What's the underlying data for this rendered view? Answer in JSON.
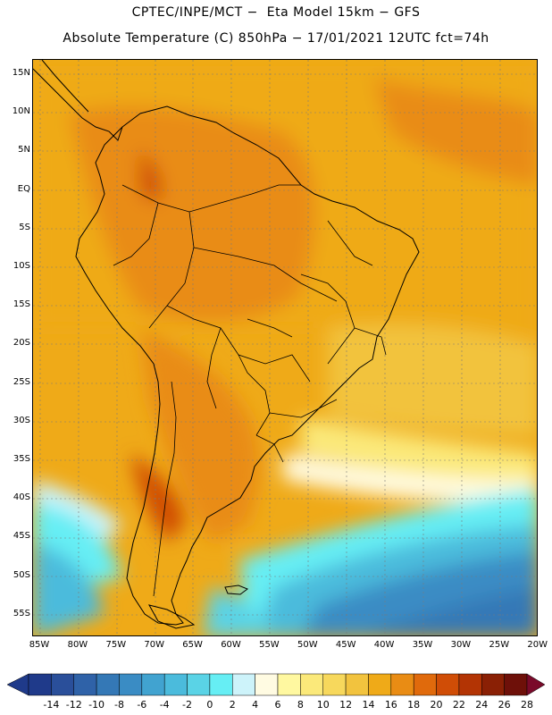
{
  "title_line1": "CPTEC/INPE/MCT −  Eta Model 15km − GFS",
  "title_line2": "Absolute Temperature (C) 850hPa − 17/01/2021 12UTC fct=74h",
  "y_ticks": [
    "15N",
    "10N",
    "5N",
    "EQ",
    "5S",
    "10S",
    "15S",
    "20S",
    "25S",
    "30S",
    "35S",
    "40S",
    "45S",
    "50S",
    "55S"
  ],
  "x_ticks": [
    "85W",
    "80W",
    "75W",
    "70W",
    "65W",
    "60W",
    "55W",
    "50W",
    "45W",
    "40W",
    "35W",
    "30W",
    "25W",
    "20W"
  ],
  "colorbar": {
    "labels": [
      "-14",
      "-12",
      "-10",
      "-8",
      "-6",
      "-4",
      "-2",
      "0",
      "2",
      "4",
      "6",
      "8",
      "10",
      "12",
      "14",
      "16",
      "18",
      "20",
      "22",
      "24",
      "26",
      "28"
    ],
    "colors": [
      "#1f3a8a",
      "#2a4f9a",
      "#2f62a8",
      "#3478b6",
      "#3a8cc4",
      "#41a3d0",
      "#4bbbdc",
      "#5ad3e6",
      "#66eef4",
      "#cdf3fa",
      "#fffbe2",
      "#fff8a0",
      "#fbe97a",
      "#f7d85c",
      "#f2c33e",
      "#efaa18",
      "#e98c14",
      "#e06a0c",
      "#d04d06",
      "#b33404",
      "#8a2005",
      "#6e1009"
    ]
  },
  "chart_data": {
    "type": "heatmap",
    "title": "Absolute Temperature (C) 850hPa",
    "units": "C",
    "x_range_lon": [
      -86,
      -20
    ],
    "y_range_lat": [
      -58,
      17
    ],
    "grid": true
  }
}
